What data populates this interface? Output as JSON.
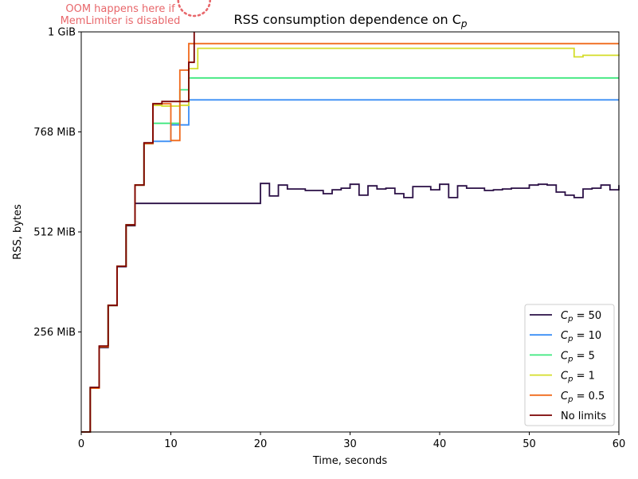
{
  "chart_data": {
    "type": "line",
    "step": "post",
    "title": "RSS consumption dependence on C",
    "title_subscript": "p",
    "xlabel": "Time, seconds",
    "ylabel": "RSS, bytes",
    "xlim": [
      0,
      60
    ],
    "ylim_mib": [
      0,
      1024
    ],
    "xticks": [
      0,
      10,
      20,
      30,
      40,
      50,
      60
    ],
    "yticks": [
      {
        "value_mib": 256,
        "label": "256 MiB"
      },
      {
        "value_mib": 512,
        "label": "512 MiB"
      },
      {
        "value_mib": 768,
        "label": "768 MiB"
      },
      {
        "value_mib": 1024,
        "label": "1 GiB"
      }
    ],
    "annotation": {
      "lines": [
        "OOM happens here if",
        "MemLimiter is disabled"
      ],
      "x": 12.6,
      "y_mib": 1024,
      "color": "#e8676b"
    },
    "series": [
      {
        "name": "C_p = 50",
        "legend_var": "C",
        "legend_sub": "p",
        "legend_value": " = 50",
        "color": "#2a0f45",
        "x": [
          0,
          1,
          2,
          3,
          4,
          5,
          6,
          20,
          21,
          22,
          23,
          25,
          27,
          28,
          29,
          30,
          31,
          32,
          33,
          34,
          35,
          36,
          37,
          38,
          39,
          40,
          41,
          42,
          43,
          44,
          45,
          46,
          47,
          48,
          49,
          50,
          51,
          52,
          53,
          54,
          55,
          56,
          57,
          58,
          59,
          60
        ],
        "y": [
          0,
          114,
          216,
          324,
          423,
          528,
          585,
          636,
          604,
          632,
          622,
          618,
          610,
          620,
          624,
          634,
          606,
          630,
          622,
          624,
          610,
          600,
          628,
          628,
          620,
          634,
          600,
          630,
          624,
          624,
          618,
          620,
          622,
          624,
          624,
          632,
          634,
          632,
          614,
          606,
          600,
          622,
          624,
          632,
          620,
          632
        ]
      },
      {
        "name": "C_p = 10",
        "legend_var": "C",
        "legend_sub": "p",
        "legend_value": " = 10",
        "color": "#3a8ef5",
        "x": [
          0,
          1,
          2,
          3,
          4,
          5,
          6,
          7,
          8,
          10,
          12,
          16,
          60
        ],
        "y": [
          0,
          112,
          218,
          324,
          424,
          530,
          632,
          738,
          744,
          786,
          850,
          850,
          850
        ]
      },
      {
        "name": "C_p = 5",
        "legend_var": "C",
        "legend_sub": "p",
        "legend_value": " = 5",
        "color": "#3ee87e",
        "x": [
          0,
          1,
          2,
          3,
          4,
          5,
          6,
          7,
          8,
          11,
          12,
          60
        ],
        "y": [
          0,
          112,
          218,
          324,
          424,
          530,
          632,
          738,
          790,
          876,
          906,
          906
        ]
      },
      {
        "name": "C_p = 1",
        "legend_var": "C",
        "legend_sub": "p",
        "legend_value": " = 1",
        "color": "#d4dd2a",
        "x": [
          0,
          1,
          2,
          3,
          4,
          5,
          6,
          7,
          8,
          9,
          11,
          12,
          13,
          43,
          55,
          56,
          60
        ],
        "y": [
          0,
          112,
          218,
          324,
          424,
          530,
          632,
          738,
          836,
          834,
          836,
          930,
          982,
          982,
          960,
          964,
          966
        ]
      },
      {
        "name": "C_p = 0.5",
        "legend_var": "C",
        "legend_sub": "p",
        "legend_value": " = 0.5",
        "color": "#f06a1c",
        "x": [
          0,
          1,
          2,
          3,
          4,
          5,
          6,
          7,
          8,
          10,
          11,
          12,
          60
        ],
        "y": [
          0,
          112,
          218,
          324,
          424,
          530,
          632,
          738,
          840,
          746,
          926,
          994,
          994
        ]
      },
      {
        "name": "No limits",
        "legend_var": "",
        "legend_sub": "",
        "legend_value": "No limits",
        "color": "#7a0000",
        "x": [
          0,
          1,
          2,
          3,
          4,
          5,
          6,
          7,
          8,
          9,
          11,
          12,
          12.6
        ],
        "y": [
          0,
          114,
          220,
          324,
          424,
          530,
          632,
          740,
          840,
          846,
          846,
          946,
          1024
        ]
      }
    ]
  }
}
